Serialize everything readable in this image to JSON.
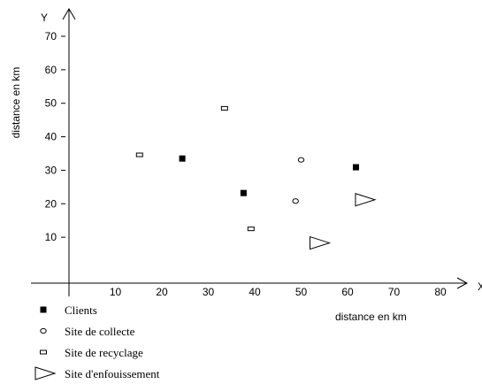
{
  "chart_data": {
    "type": "scatter",
    "xlabel": "distance en km",
    "ylabel": "distance en km",
    "x_axis_letter": "X",
    "y_axis_letter": "Y",
    "xlim": [
      0,
      80
    ],
    "ylim": [
      0,
      70
    ],
    "x_ticks": [
      "10",
      "20",
      "30",
      "40",
      "50",
      "60",
      "70",
      "80"
    ],
    "y_ticks": [
      "10",
      "20",
      "30",
      "40",
      "50",
      "60",
      "70"
    ],
    "grid": false,
    "legend_position": "bottom-left",
    "series": [
      {
        "name": "Clients",
        "marker": "filled-square",
        "points": [
          [
            24.4,
            33.5
          ],
          [
            37.6,
            23.2
          ],
          [
            61.8,
            30.9
          ]
        ]
      },
      {
        "name": "Site de collecte",
        "marker": "open-circle",
        "points": [
          [
            50.0,
            33.1
          ],
          [
            48.8,
            20.8
          ]
        ]
      },
      {
        "name": "Site de recyclage",
        "marker": "open-rectangle",
        "points": [
          [
            15.2,
            34.6
          ],
          [
            33.5,
            48.5
          ],
          [
            39.2,
            12.5
          ]
        ]
      },
      {
        "name": "Site d'enfouissement",
        "marker": "open-triangle",
        "points": [
          [
            63.8,
            21.2
          ],
          [
            54.0,
            8.3
          ]
        ]
      }
    ]
  }
}
